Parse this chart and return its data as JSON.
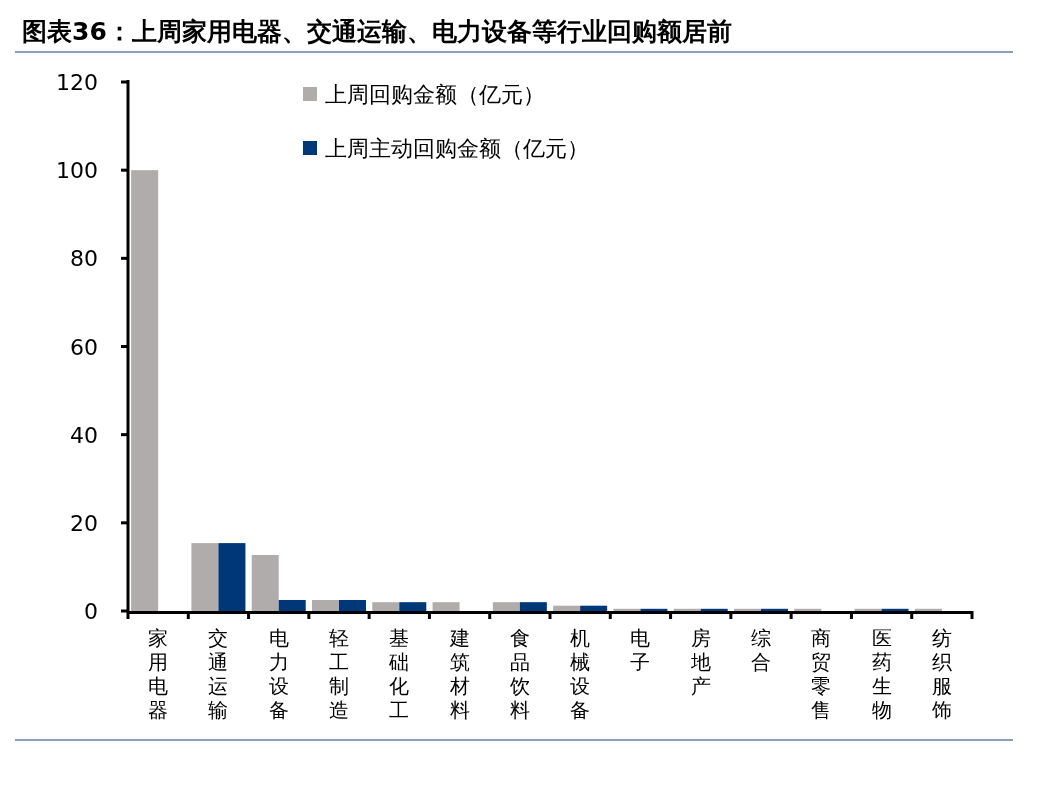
{
  "chart_data": {
    "type": "bar",
    "title": "图表36：上周家用电器、交通运输、电力设备等行业回购额居前",
    "categories": [
      "家用电器",
      "交通运输",
      "电力设备",
      "轻工制造",
      "基础化工",
      "建筑材料",
      "食品饮料",
      "机械设备",
      "电子",
      "房地产",
      "综合",
      "商贸零售",
      "医药生物",
      "纺织服饰"
    ],
    "series": [
      {
        "name": "上周回购金额（亿元）",
        "color": "#b0acac",
        "values": [
          100,
          15.4,
          12.7,
          2.5,
          2.0,
          2.0,
          2.0,
          1.2,
          0.5,
          0.5,
          0.5,
          0.5,
          0.5,
          0.5
        ]
      },
      {
        "name": "上周主动回购金额（亿元）",
        "color": "#003778",
        "values": [
          0,
          15.4,
          2.5,
          2.5,
          2.0,
          0,
          2.0,
          1.2,
          0.5,
          0.5,
          0.5,
          0,
          0.5,
          0
        ]
      }
    ],
    "ylim": [
      0,
      120
    ],
    "yticks": [
      0,
      20,
      40,
      60,
      80,
      100,
      120
    ],
    "legend": "top left",
    "grid": false
  }
}
